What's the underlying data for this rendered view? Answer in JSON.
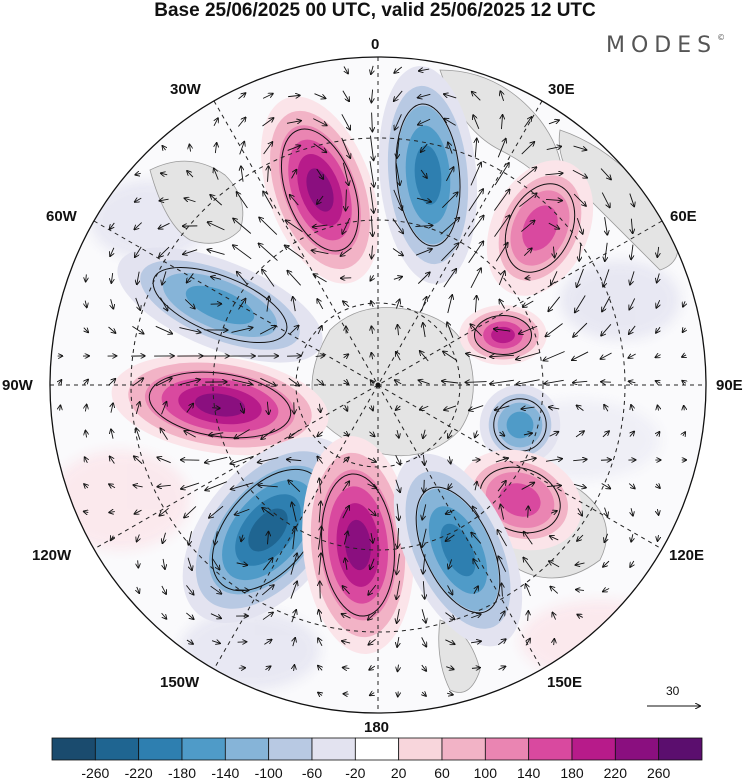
{
  "title": "Base 25/06/2025 00 UTC, valid 25/06/2025 12 UTC",
  "logo": "MODES",
  "logo_mark": "©",
  "longitude_labels": {
    "top": "0",
    "e30": "30E",
    "e60": "60E",
    "e90": "90E",
    "e120": "120E",
    "e150": "150E",
    "bottom": "180",
    "w150": "150W",
    "w120": "120W",
    "w90": "90W",
    "w60": "60W",
    "w30": "30W"
  },
  "reference_vector": {
    "value": "30"
  },
  "colorbar": {
    "ticks": [
      "-260",
      "-220",
      "-180",
      "-140",
      "-100",
      "-60",
      "-20",
      "20",
      "60",
      "100",
      "140",
      "180",
      "220",
      "260"
    ],
    "colors": [
      "#1a4b6e",
      "#1f6591",
      "#2e7fb0",
      "#4f9bc8",
      "#86b4d8",
      "#b8c9e3",
      "#e3e3f0",
      "#ffffff",
      "#f8d6dc",
      "#f2b3c6",
      "#ea85b2",
      "#d9499f",
      "#b71b8a",
      "#8a0f7f",
      "#5b0e6e"
    ]
  },
  "map": {
    "center_symbol": "pole-marker",
    "blobs": [
      {
        "name": "anomaly-positive-30w",
        "sign": "positive",
        "strength": 220
      },
      {
        "name": "anomaly-negative-15e",
        "sign": "negative",
        "strength": -200
      },
      {
        "name": "anomaly-positive-50e",
        "sign": "positive",
        "strength": 160
      },
      {
        "name": "anomaly-negative-65w",
        "sign": "negative",
        "strength": -160
      },
      {
        "name": "anomaly-positive-80e",
        "sign": "positive",
        "strength": 180
      },
      {
        "name": "anomaly-negative-100e",
        "sign": "negative",
        "strength": -140
      },
      {
        "name": "anomaly-positive-95w",
        "sign": "positive",
        "strength": 240
      },
      {
        "name": "anomaly-positive-125e",
        "sign": "positive",
        "strength": 160
      },
      {
        "name": "anomaly-negative-135w",
        "sign": "negative",
        "strength": -220
      },
      {
        "name": "anomaly-positive-170w",
        "sign": "positive",
        "strength": 220
      },
      {
        "name": "anomaly-negative-150e",
        "sign": "negative",
        "strength": -200
      }
    ]
  }
}
